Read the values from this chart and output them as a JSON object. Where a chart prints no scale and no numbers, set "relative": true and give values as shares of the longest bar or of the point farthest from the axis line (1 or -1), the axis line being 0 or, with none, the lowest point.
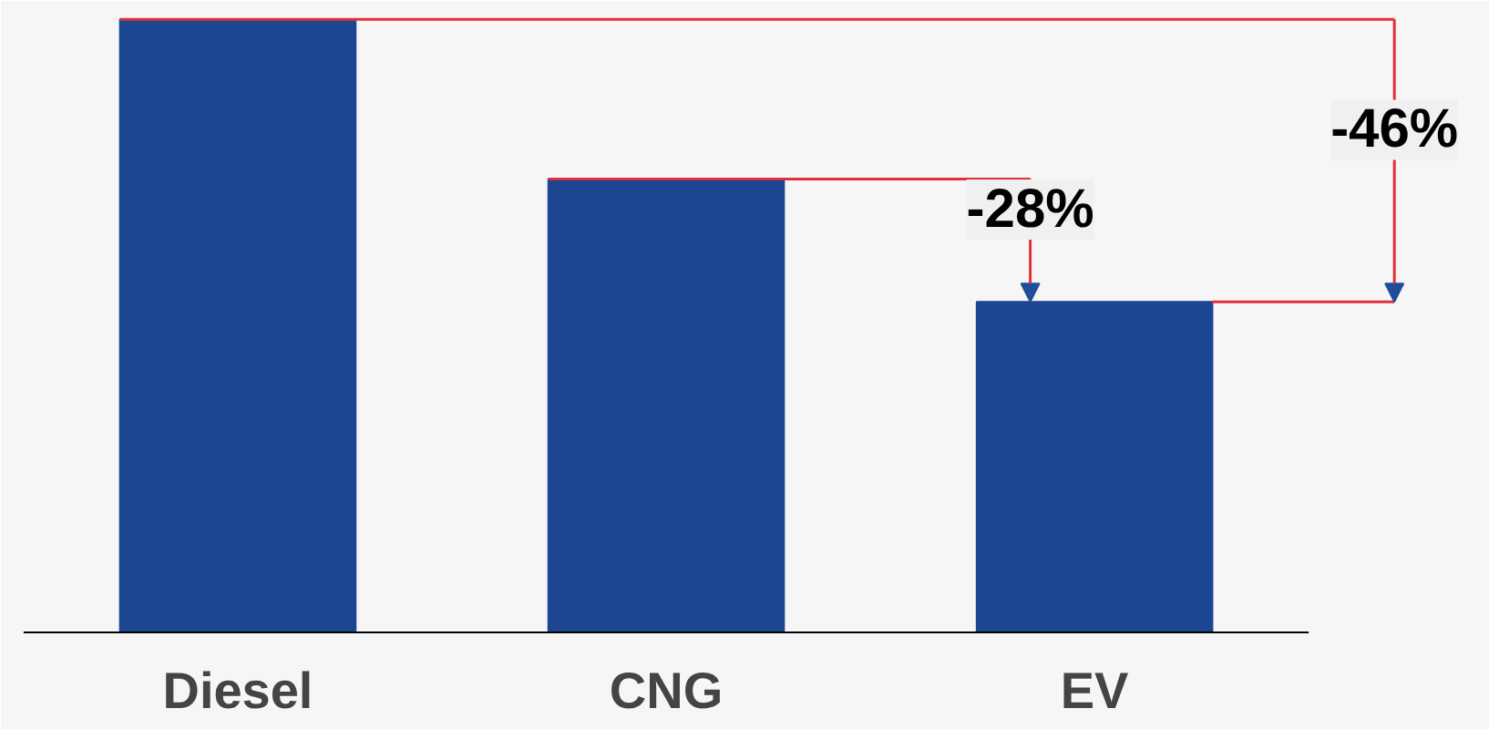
{
  "chart_data": {
    "type": "bar",
    "relative": true,
    "categories": [
      "Diesel",
      "CNG",
      "EV"
    ],
    "values": [
      1,
      0.74,
      0.54
    ],
    "color": "#1c4592",
    "annotations": [
      "-28%",
      "-46%"
    ]
  }
}
